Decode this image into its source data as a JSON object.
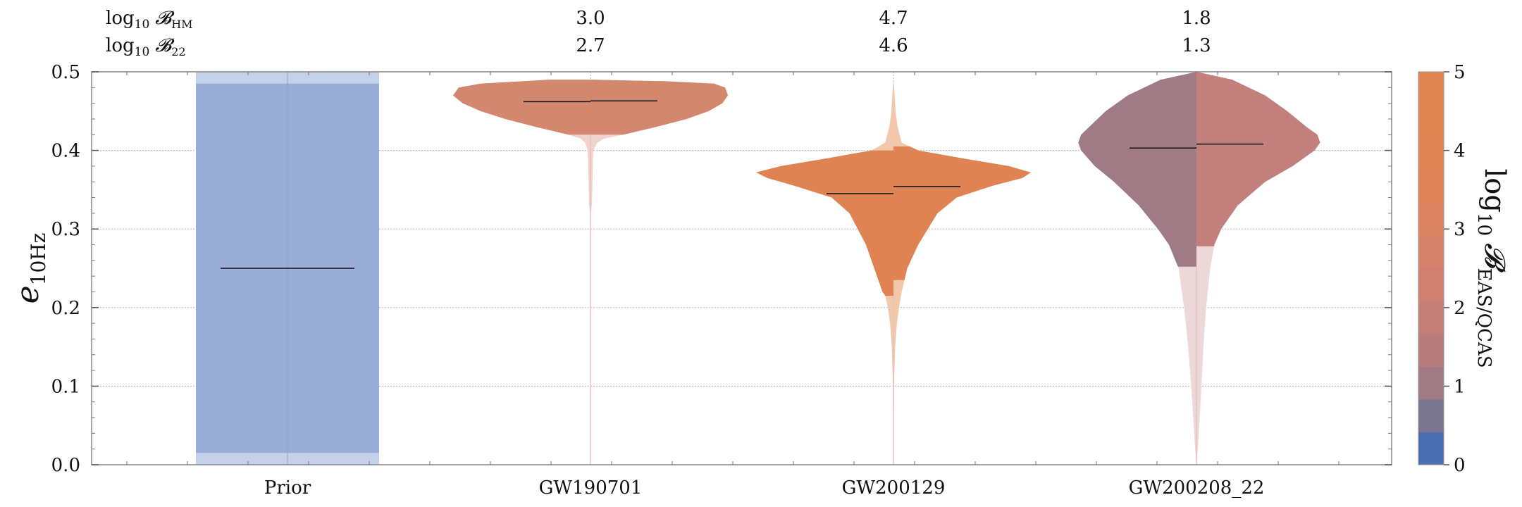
{
  "chart_data": {
    "type": "violin",
    "y_axis": {
      "label_symbol": "e",
      "label_sub": "10Hz",
      "ylim": [
        0,
        0.5
      ],
      "ticks": [
        "0.0",
        "0.1",
        "0.2",
        "0.3",
        "0.4",
        "0.5"
      ],
      "tick_values": [
        0,
        0.1,
        0.2,
        0.3,
        0.4,
        0.5
      ],
      "grid": true
    },
    "categories": [
      "Prior",
      "GW190701",
      "GW200129",
      "GW200208_22"
    ],
    "bayes_factor_rows": [
      {
        "label_prefix": "log",
        "label_sub": "10",
        "label_symbol": "𝓑",
        "label_symbol_sub": "HM",
        "values": [
          "",
          "3.0",
          "4.7",
          "1.8"
        ]
      },
      {
        "label_prefix": "log",
        "label_sub": "10",
        "label_symbol": "𝓑",
        "label_symbol_sub": "22",
        "values": [
          "",
          "2.7",
          "4.6",
          "1.3"
        ]
      }
    ],
    "colorbar": {
      "label_prefix": "log",
      "label_sub": "10",
      "label_symbol": "𝓑",
      "label_symbol_sub": "EAS/QCAS",
      "range": [
        0,
        5
      ],
      "ticks": [
        "0",
        "1",
        "2",
        "3",
        "4",
        "5"
      ],
      "colors": [
        "#4a6fb3",
        "#7b7690",
        "#a07b86",
        "#b97c7c",
        "#c47e78",
        "#cf8070",
        "#d6826b",
        "#dc8461",
        "#e08559",
        "#e08654",
        "#e08650",
        "#e08650"
      ]
    },
    "violins": [
      {
        "category": "Prior",
        "kind": "uniform",
        "left_bf": null,
        "right_bf": null,
        "median_left": 0.25,
        "median_right": 0.25,
        "ci90": [
          0.015,
          0.485
        ],
        "color_inner": "#98aed6",
        "color_outer": "#c5d1e8"
      },
      {
        "category": "GW190701",
        "left_bf": 3.0,
        "right_bf": 2.7,
        "median_left": 0.462,
        "median_right": 0.463,
        "ci90_left": [
          0.42,
          0.5
        ],
        "ci90_right": [
          0.42,
          0.5
        ],
        "color_inner": "#d4876f",
        "color_outer": "#f0d3cb",
        "profile": [
          [
            0.0,
            0.0
          ],
          [
            0.32,
            0.0
          ],
          [
            0.33,
            0.01
          ],
          [
            0.4,
            0.02
          ],
          [
            0.41,
            0.04
          ],
          [
            0.415,
            0.07
          ],
          [
            0.42,
            0.16
          ],
          [
            0.43,
            0.4
          ],
          [
            0.44,
            0.62
          ],
          [
            0.45,
            0.8
          ],
          [
            0.46,
            0.93
          ],
          [
            0.47,
            1.0
          ],
          [
            0.48,
            0.96
          ],
          [
            0.485,
            0.8
          ],
          [
            0.49,
            0.3
          ],
          [
            0.49,
            0.0
          ]
        ],
        "profile_right": [
          [
            0.0,
            0.0
          ],
          [
            0.32,
            0.0
          ],
          [
            0.33,
            0.01
          ],
          [
            0.4,
            0.02
          ],
          [
            0.41,
            0.05
          ],
          [
            0.415,
            0.1
          ],
          [
            0.42,
            0.24
          ],
          [
            0.43,
            0.48
          ],
          [
            0.44,
            0.7
          ],
          [
            0.45,
            0.86
          ],
          [
            0.46,
            0.96
          ],
          [
            0.47,
            1.0
          ],
          [
            0.48,
            0.98
          ],
          [
            0.485,
            0.9
          ],
          [
            0.488,
            0.55
          ],
          [
            0.49,
            0.0
          ]
        ]
      },
      {
        "category": "GW200129",
        "left_bf": 4.7,
        "right_bf": 4.6,
        "median_left": 0.345,
        "median_right": 0.354,
        "ci90_left": [
          0.215,
          0.4
        ],
        "ci90_right": [
          0.235,
          0.405
        ],
        "color_inner": "#e08352",
        "color_outer": "#f3c7aa",
        "profile": [
          [
            0.0,
            0.0
          ],
          [
            0.1,
            0.004
          ],
          [
            0.15,
            0.012
          ],
          [
            0.18,
            0.025
          ],
          [
            0.2,
            0.04
          ],
          [
            0.215,
            0.06
          ],
          [
            0.22,
            0.08
          ],
          [
            0.25,
            0.14
          ],
          [
            0.28,
            0.2
          ],
          [
            0.3,
            0.26
          ],
          [
            0.32,
            0.32
          ],
          [
            0.34,
            0.45
          ],
          [
            0.355,
            0.72
          ],
          [
            0.365,
            0.92
          ],
          [
            0.372,
            1.0
          ],
          [
            0.38,
            0.82
          ],
          [
            0.39,
            0.48
          ],
          [
            0.4,
            0.16
          ],
          [
            0.41,
            0.06
          ],
          [
            0.43,
            0.03
          ],
          [
            0.45,
            0.015
          ],
          [
            0.48,
            0.005
          ],
          [
            0.49,
            0.0
          ]
        ],
        "profile_right": [
          [
            0.0,
            0.0
          ],
          [
            0.1,
            0.004
          ],
          [
            0.15,
            0.012
          ],
          [
            0.18,
            0.025
          ],
          [
            0.2,
            0.04
          ],
          [
            0.22,
            0.06
          ],
          [
            0.235,
            0.08
          ],
          [
            0.25,
            0.1
          ],
          [
            0.28,
            0.18
          ],
          [
            0.3,
            0.25
          ],
          [
            0.32,
            0.32
          ],
          [
            0.34,
            0.46
          ],
          [
            0.355,
            0.72
          ],
          [
            0.365,
            0.94
          ],
          [
            0.372,
            1.0
          ],
          [
            0.38,
            0.84
          ],
          [
            0.39,
            0.5
          ],
          [
            0.4,
            0.18
          ],
          [
            0.41,
            0.06
          ],
          [
            0.43,
            0.03
          ],
          [
            0.45,
            0.015
          ],
          [
            0.48,
            0.005
          ],
          [
            0.49,
            0.0
          ]
        ]
      },
      {
        "category": "GW200208_22",
        "left_bf": 1.8,
        "right_bf": 1.3,
        "median_left": 0.403,
        "median_right": 0.408,
        "ci90_left": [
          0.252,
          0.5
        ],
        "ci90_right": [
          0.278,
          0.5
        ],
        "color_inner_left": "#a07b86",
        "color_inner_right": "#c27f7b",
        "color_outer": "#ecd8d9",
        "profile": [
          [
            0.0,
            0.0
          ],
          [
            0.02,
            0.01
          ],
          [
            0.08,
            0.03
          ],
          [
            0.15,
            0.06
          ],
          [
            0.2,
            0.09
          ],
          [
            0.25,
            0.13
          ],
          [
            0.28,
            0.2
          ],
          [
            0.3,
            0.28
          ],
          [
            0.33,
            0.42
          ],
          [
            0.36,
            0.6
          ],
          [
            0.38,
            0.74
          ],
          [
            0.4,
            0.84
          ],
          [
            0.41,
            0.86
          ],
          [
            0.42,
            0.84
          ],
          [
            0.43,
            0.78
          ],
          [
            0.45,
            0.66
          ],
          [
            0.47,
            0.5
          ],
          [
            0.49,
            0.26
          ],
          [
            0.5,
            0.0
          ]
        ],
        "profile_right": [
          [
            0.0,
            0.0
          ],
          [
            0.02,
            0.01
          ],
          [
            0.08,
            0.03
          ],
          [
            0.15,
            0.05
          ],
          [
            0.2,
            0.07
          ],
          [
            0.25,
            0.1
          ],
          [
            0.28,
            0.13
          ],
          [
            0.3,
            0.18
          ],
          [
            0.33,
            0.3
          ],
          [
            0.36,
            0.5
          ],
          [
            0.38,
            0.7
          ],
          [
            0.4,
            0.86
          ],
          [
            0.41,
            0.9
          ],
          [
            0.42,
            0.88
          ],
          [
            0.43,
            0.8
          ],
          [
            0.45,
            0.66
          ],
          [
            0.47,
            0.5
          ],
          [
            0.49,
            0.26
          ],
          [
            0.5,
            0.0
          ]
        ]
      }
    ]
  }
}
